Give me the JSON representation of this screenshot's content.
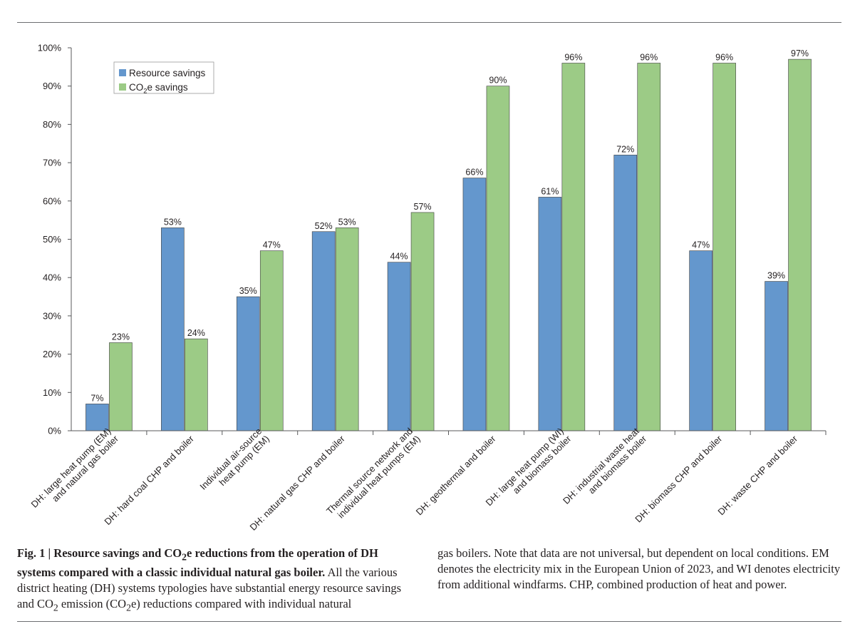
{
  "chart_data": {
    "type": "bar",
    "categories": [
      [
        "DH: large heat pump (EM)",
        "and natural gas boiler"
      ],
      [
        "DH: hard coal CHP and boiler"
      ],
      [
        "Individual air-source",
        "heat pump (EM)"
      ],
      [
        "DH: natural gas CHP and boiler"
      ],
      [
        "Thermal source network and",
        "individual heat pumps (EM)"
      ],
      [
        "DH: geothermal and boiler"
      ],
      [
        "DH: large heat pump (WI)",
        "and biomass boiler"
      ],
      [
        "DH: industrial waste heat",
        "and biomass boiler"
      ],
      [
        "DH: biomass CHP and boiler"
      ],
      [
        "DH: waste CHP and boiler"
      ]
    ],
    "series": [
      {
        "name": "Resource savings",
        "color": "#6497cd",
        "values": [
          7,
          53,
          35,
          52,
          44,
          66,
          61,
          72,
          47,
          39
        ]
      },
      {
        "name": "CO2e savings",
        "color": "#9ccb86",
        "values": [
          23,
          24,
          47,
          53,
          57,
          90,
          96,
          96,
          96,
          97
        ]
      }
    ],
    "data_labels": [
      [
        "7%",
        "53%",
        "35%",
        "52%",
        "44%",
        "66%",
        "61%",
        "72%",
        "47%",
        "39%"
      ],
      [
        "23%",
        "24%",
        "47%",
        "53%",
        "57%",
        "90%",
        "96%",
        "96%",
        "96%",
        "97%"
      ]
    ],
    "yticks": [
      "0%",
      "10%",
      "20%",
      "30%",
      "40%",
      "50%",
      "60%",
      "70%",
      "80%",
      "90%",
      "100%"
    ],
    "ylim": [
      0,
      100
    ],
    "legend": {
      "position": "top-left",
      "entries": [
        {
          "prefix": "Resource savings",
          "sub": "",
          "suffix": ""
        },
        {
          "prefix": "CO",
          "sub": "2",
          "suffix": "e savings"
        }
      ]
    },
    "title": "",
    "xlabel": "",
    "ylabel": ""
  },
  "caption": {
    "fig_label": "Fig. 1 | ",
    "bold_part1": "Resource savings and CO",
    "bold_sub": "2",
    "bold_part2": "e reductions from the operation of DH systems compared with a classic individual natural gas boiler.",
    "text_part1": " All the various district heating (DH) systems typologies have substantial energy resource savings and CO",
    "text_sub1": "2",
    "text_part2": " emission (CO",
    "text_sub2": "2",
    "text_part3": "e) reductions compared with individual natural",
    "right_text": "gas boilers. Note that data are not universal, but dependent on local conditions. EM denotes the electricity mix in the European Union of 2023, and WI denotes electricity from additional windfarms. CHP, combined production of heat and power."
  }
}
